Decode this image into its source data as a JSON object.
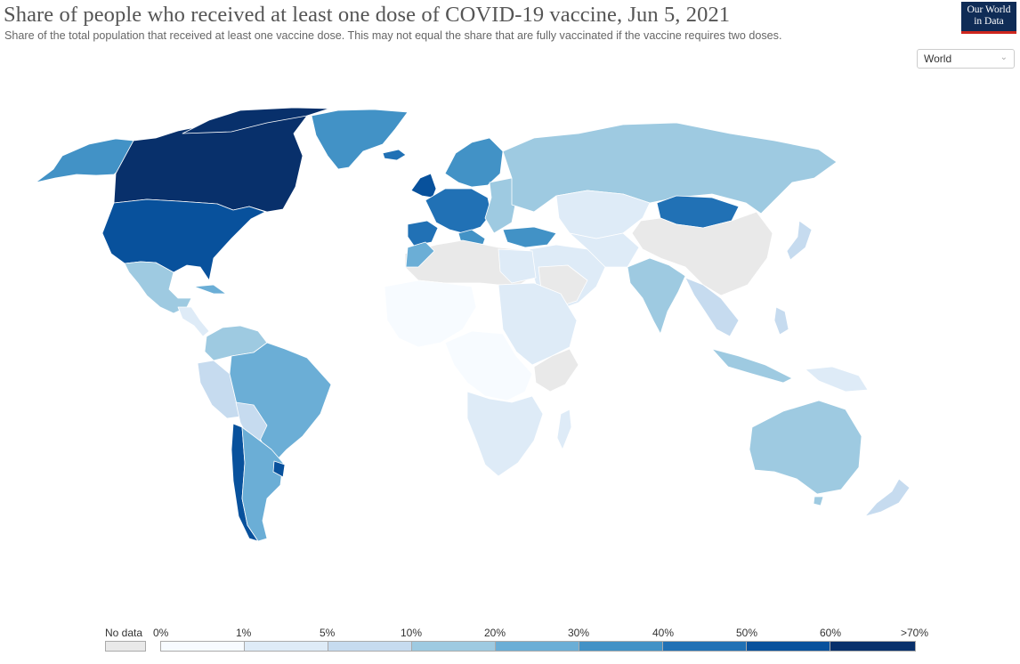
{
  "header": {
    "title": "Share of people who received at least one dose of COVID-19 vaccine, Jun 5, 2021",
    "subtitle": "Share of the total population that received at least one vaccine dose. This may not equal the share that are fully vaccinated if the vaccine requires two doses.",
    "logo_line1": "Our World",
    "logo_line2": "in Data"
  },
  "region_select": {
    "selected": "World"
  },
  "colors": {
    "nodata": "#e9e9e9",
    "c0": "#f7fbff",
    "c1": "#deebf7",
    "c2": "#c6dbef",
    "c3": "#9ecae1",
    "c4": "#6baed6",
    "c5": "#4292c6",
    "c6": "#2171b5",
    "c7": "#08519c",
    "c8": "#08306b",
    "border": "#ffffff"
  },
  "legend": {
    "nodata_label": "No data",
    "ticks": [
      "0%",
      "1%",
      "5%",
      "10%",
      "20%",
      "30%",
      "40%",
      "50%",
      "60%",
      ">70%"
    ]
  }
}
